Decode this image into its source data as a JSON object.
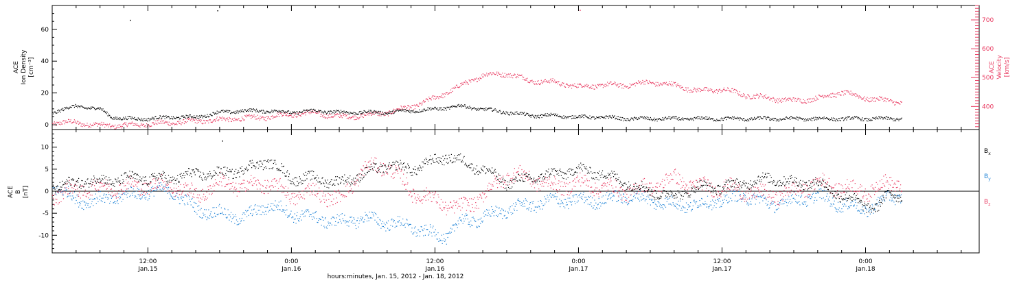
{
  "colors": {
    "black": "#000000",
    "pink": "#e8385f",
    "blue": "#1f83d6",
    "axis": "#000000"
  },
  "xaxis": {
    "label": "hours:minutes, Jan. 15, 2012 - Jan. 18, 2012",
    "range_hours": [
      -20.0,
      57.5
    ],
    "ticks": [
      {
        "h": 12,
        "line1": "12:00",
        "line2": "Jan.15"
      },
      {
        "h": 24,
        "line1": "0:00",
        "line2": "Jan.16"
      },
      {
        "h": 36,
        "line1": "12:00",
        "line2": "Jan.16"
      },
      {
        "h": 48,
        "line1": "0:00",
        "line2": "Jan.17"
      },
      {
        "h": 60,
        "line1": "12:00",
        "line2": "Jan.17"
      },
      {
        "h": 72,
        "line1": "0:00",
        "line2": "Jan.18"
      }
    ]
  },
  "chart_data": [
    {
      "type": "scatter",
      "panel": "top",
      "ylabel_left": [
        "ACE",
        "Ion Density",
        "[cm⁻³]"
      ],
      "ylabel_right": [
        "ACE",
        "Velocity",
        "[km/s]"
      ],
      "ylim_left": [
        -3,
        75
      ],
      "yticks_left": [
        0,
        20,
        40,
        60
      ],
      "ylim_right": [
        320,
        750
      ],
      "yticks_right": [
        400,
        500,
        600,
        700
      ],
      "series": [
        {
          "color_key": "black",
          "axis": "left",
          "x_hours": [
            4.0,
            5.0,
            6.0,
            7.0,
            8.0,
            9.0,
            10.0,
            12.0,
            14.0,
            16.0,
            18.0,
            20.0,
            22.0,
            24.0,
            26.0,
            28.0,
            30.0,
            32.0,
            34.0,
            36.0,
            38.0,
            40.0,
            42.0,
            44.0,
            46.0,
            48.0,
            50.0,
            52.0,
            54.0,
            56.0,
            58.0,
            60.0,
            62.0,
            64.0,
            66.0,
            68.0,
            70.0,
            72.0,
            73.0,
            74.0,
            75.0
          ],
          "values": [
            8,
            10,
            12,
            11,
            10,
            5,
            4,
            4,
            5,
            5,
            8,
            9,
            9,
            8,
            9,
            8,
            8,
            8,
            9,
            10,
            12,
            10,
            8,
            6,
            6,
            5,
            5,
            4,
            4,
            4,
            4,
            4,
            4,
            4,
            4,
            4,
            4,
            4,
            4,
            4,
            4
          ]
        },
        {
          "color_key": "pink",
          "axis": "right",
          "x_hours": [
            4.0,
            6.0,
            8.0,
            10.0,
            12.0,
            14.0,
            16.0,
            18.0,
            20.0,
            22.0,
            24.0,
            26.0,
            28.0,
            30.0,
            32.0,
            34.0,
            36.0,
            38.0,
            40.0,
            42.0,
            44.0,
            46.0,
            48.0,
            50.0,
            52.0,
            54.0,
            56.0,
            58.0,
            60.0,
            62.0,
            64.0,
            66.0,
            68.0,
            70.0,
            72.0,
            74.0,
            75.0
          ],
          "values": [
            345,
            345,
            335,
            335,
            340,
            345,
            350,
            355,
            360,
            365,
            375,
            378,
            365,
            370,
            380,
            400,
            430,
            470,
            510,
            515,
            490,
            485,
            470,
            475,
            475,
            485,
            475,
            455,
            460,
            440,
            430,
            420,
            430,
            450,
            430,
            420,
            415
          ]
        }
      ]
    },
    {
      "type": "scatter",
      "panel": "bottom",
      "ylabel_left": [
        "ACE",
        "B",
        "[nT]"
      ],
      "ylim": [
        -14,
        14
      ],
      "yticks": [
        -10,
        -5,
        0,
        5,
        10
      ],
      "zero_line": true,
      "series": [
        {
          "name": "Bx",
          "label": "B",
          "sub": "x",
          "color_key": "black",
          "x_hours": [
            4.0,
            5.0,
            6.0,
            7.0,
            8.0,
            9.0,
            10.0,
            12.0,
            14.0,
            16.0,
            18.0,
            20.0,
            21.0,
            22.0,
            23.0,
            24.0,
            26.0,
            28.0,
            30.0,
            32.0,
            34.0,
            36.0,
            37.0,
            38.0,
            40.0,
            42.0,
            44.0,
            46.0,
            48.0,
            50.0,
            52.0,
            54.0,
            56.0,
            58.0,
            60.0,
            62.0,
            64.0,
            66.0,
            68.0,
            70.0,
            72.0,
            73.0,
            74.0,
            75.0
          ],
          "values": [
            1,
            1.5,
            2,
            2.5,
            2.5,
            2.5,
            3,
            3,
            3,
            4,
            4,
            5,
            6,
            7,
            5,
            3,
            3,
            2,
            4,
            6,
            5,
            7,
            8,
            7,
            5,
            2,
            3,
            4,
            5,
            4,
            2,
            0,
            -1,
            1,
            1,
            2,
            3,
            2,
            2,
            -1,
            -3,
            -4,
            0,
            -1
          ]
        },
        {
          "name": "By",
          "label": "B",
          "sub": "y",
          "color_key": "blue",
          "x_hours": [
            4.0,
            6.0,
            8.0,
            10.0,
            12.0,
            14.0,
            16.0,
            18.0,
            20.0,
            22.0,
            24.0,
            26.0,
            28.0,
            30.0,
            32.0,
            34.0,
            36.0,
            37.0,
            38.0,
            40.0,
            42.0,
            44.0,
            46.0,
            48.0,
            50.0,
            52.0,
            54.0,
            56.0,
            58.0,
            60.0,
            62.0,
            64.0,
            66.0,
            68.0,
            70.0,
            72.0,
            73.0,
            74.0,
            75.0
          ],
          "values": [
            1.5,
            -2,
            -2,
            -1,
            0,
            0,
            -4,
            -5,
            -6,
            -3,
            -5,
            -6,
            -7,
            -6,
            -7,
            -8,
            -10,
            -10,
            -7,
            -6,
            -4,
            -3,
            -2,
            -2,
            -2,
            -1,
            -2,
            -3,
            -3,
            -2,
            -1,
            -3,
            -2,
            -1,
            -3,
            -4,
            -3,
            -1,
            -1
          ]
        },
        {
          "name": "Bz",
          "label": "B",
          "sub": "z",
          "color_key": "pink",
          "x_hours": [
            4.0,
            6.0,
            8.0,
            10.0,
            12.0,
            14.0,
            16.0,
            18.0,
            20.0,
            22.0,
            24.0,
            26.0,
            28.0,
            30.0,
            32.0,
            34.0,
            36.0,
            37.0,
            38.0,
            40.0,
            42.0,
            44.0,
            46.0,
            48.0,
            50.0,
            52.0,
            54.0,
            56.0,
            58.0,
            60.0,
            62.0,
            64.0,
            66.0,
            68.0,
            70.0,
            72.0,
            73.0,
            74.0,
            75.0
          ],
          "values": [
            -1,
            0.5,
            1,
            1,
            1.5,
            1.5,
            -1,
            2,
            1,
            2,
            -1,
            0,
            -2,
            5,
            6,
            0,
            -2,
            -3,
            -4,
            -1,
            4,
            3,
            1,
            2,
            1,
            0,
            1,
            3,
            1,
            1,
            0,
            -1,
            0,
            2,
            1,
            0,
            1,
            2,
            2
          ]
        }
      ]
    }
  ],
  "outliers": [
    {
      "panel": "top",
      "axis": "left",
      "h": 17.8,
      "v": 72
    },
    {
      "panel": "top",
      "axis": "left",
      "h": 10.5,
      "v": 66
    },
    {
      "panel": "top",
      "axis": "right",
      "h": 48.1,
      "v": 735
    },
    {
      "panel": "bottom",
      "axis": "left",
      "h": 18.2,
      "v": 11.5
    }
  ]
}
